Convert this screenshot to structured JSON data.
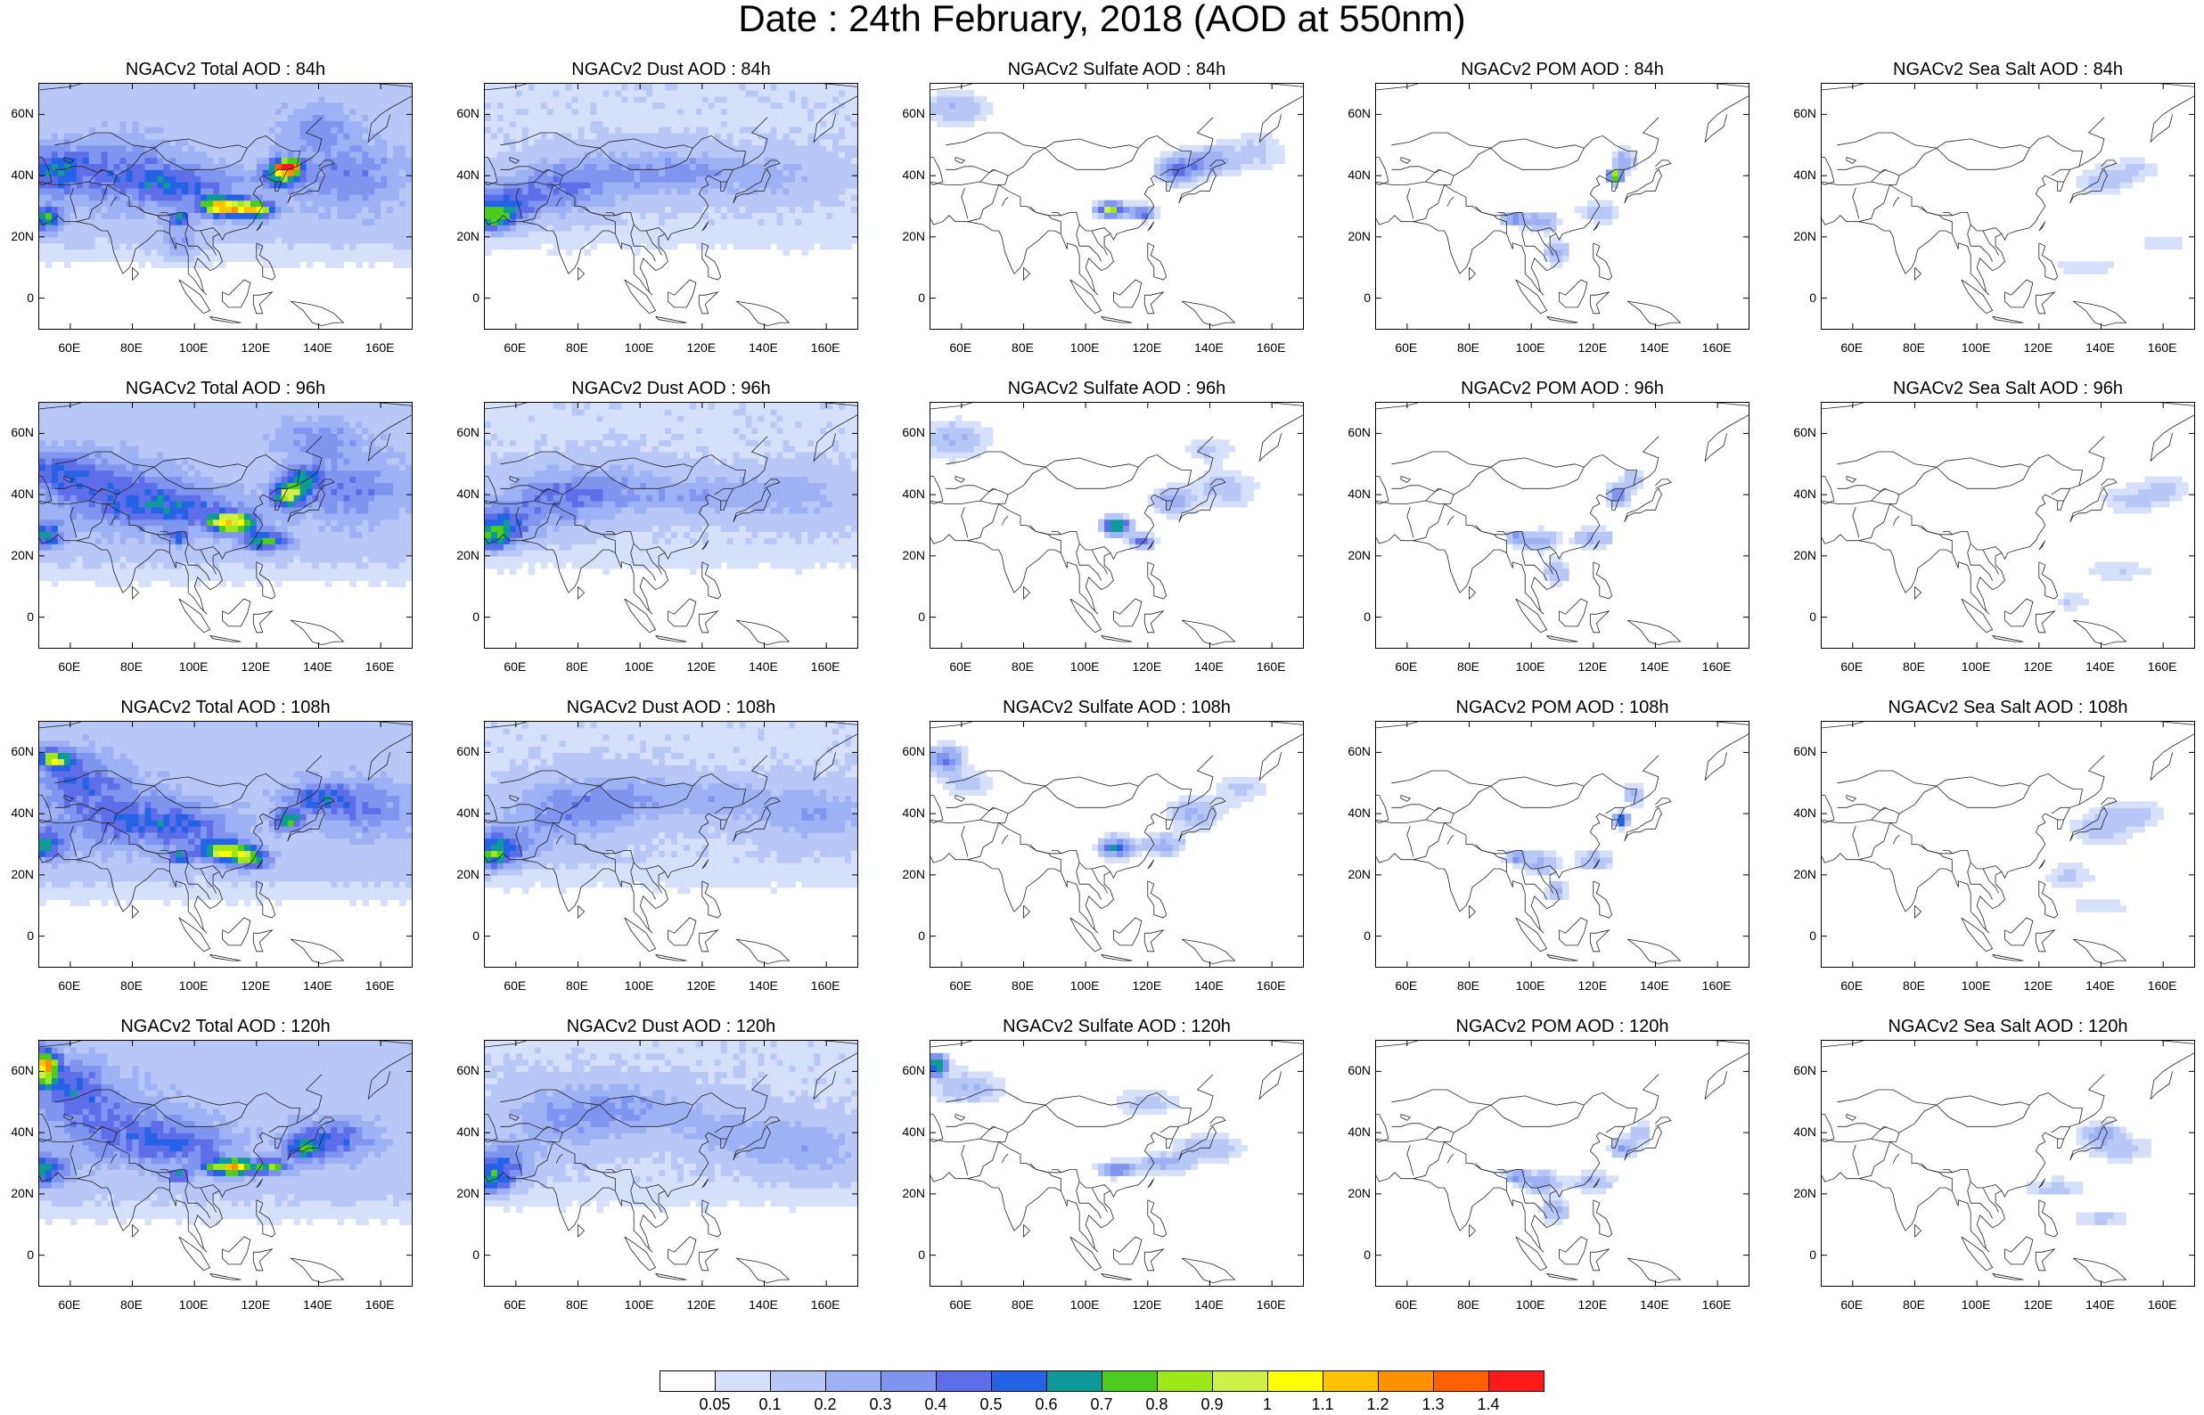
{
  "title": "Date : 24th February, 2018 (AOD at 550nm)",
  "lat_labels": [
    "60N",
    "40N",
    "20N",
    "0"
  ],
  "lon_labels": [
    "60E",
    "80E",
    "100E",
    "120E",
    "140E",
    "160E"
  ],
  "colorbar": {
    "labels": [
      "0.05",
      "0.1",
      "0.2",
      "0.3",
      "0.4",
      "0.5",
      "0.6",
      "0.7",
      "0.8",
      "0.9",
      "1",
      "1.1",
      "1.2",
      "1.3",
      "1.4"
    ],
    "colors": [
      "#ffffff",
      "#d6e0fa",
      "#b7c8f7",
      "#9cb2f4",
      "#7f95ef",
      "#5e6ee9",
      "#2463e6",
      "#0f9999",
      "#4ccc1e",
      "#9ee81a",
      "#cff046",
      "#ffff00",
      "#ffc200",
      "#ff9000",
      "#ff6000",
      "#ff1a1a"
    ]
  },
  "panels": [
    {
      "title": "NGACv2 Total AOD : 84h",
      "species": "total",
      "step": 0
    },
    {
      "title": "NGACv2 Dust AOD : 84h",
      "species": "dust",
      "step": 0
    },
    {
      "title": "NGACv2 Sulfate AOD : 84h",
      "species": "sulfate",
      "step": 0
    },
    {
      "title": "NGACv2 POM AOD : 84h",
      "species": "pom",
      "step": 0
    },
    {
      "title": "NGACv2 Sea Salt AOD : 84h",
      "species": "seasalt",
      "step": 0
    },
    {
      "title": "NGACv2 Total AOD : 96h",
      "species": "total",
      "step": 1
    },
    {
      "title": "NGACv2 Dust AOD : 96h",
      "species": "dust",
      "step": 1
    },
    {
      "title": "NGACv2 Sulfate AOD : 96h",
      "species": "sulfate",
      "step": 1
    },
    {
      "title": "NGACv2 POM AOD : 96h",
      "species": "pom",
      "step": 1
    },
    {
      "title": "NGACv2 Sea Salt AOD : 96h",
      "species": "seasalt",
      "step": 1
    },
    {
      "title": "NGACv2 Total AOD : 108h",
      "species": "total",
      "step": 2
    },
    {
      "title": "NGACv2 Dust AOD : 108h",
      "species": "dust",
      "step": 2
    },
    {
      "title": "NGACv2 Sulfate AOD : 108h",
      "species": "sulfate",
      "step": 2
    },
    {
      "title": "NGACv2 POM AOD : 108h",
      "species": "pom",
      "step": 2
    },
    {
      "title": "NGACv2 Sea Salt AOD : 108h",
      "species": "seasalt",
      "step": 2
    },
    {
      "title": "NGACv2 Total AOD : 120h",
      "species": "total",
      "step": 3
    },
    {
      "title": "NGACv2 Dust AOD : 120h",
      "species": "dust",
      "step": 3
    },
    {
      "title": "NGACv2 Sulfate AOD : 120h",
      "species": "sulfate",
      "step": 3
    },
    {
      "title": "NGACv2 POM AOD : 120h",
      "species": "pom",
      "step": 3
    },
    {
      "title": "NGACv2 Sea Salt  AOD : 120h",
      "species": "seasalt",
      "step": 3
    }
  ]
}
